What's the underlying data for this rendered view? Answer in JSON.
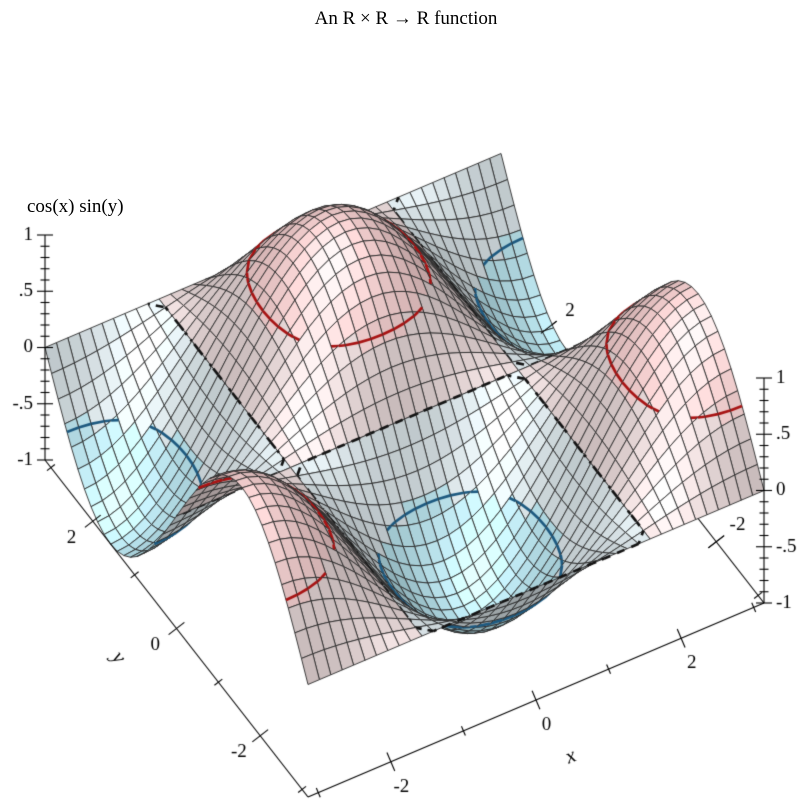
{
  "title": "An R × R → R function",
  "z_axis_title": "cos(x) sin(y)",
  "chart_data": {
    "type": "surface3d",
    "title": "An R × R → R function",
    "function": "z = cos(x) * sin(y)",
    "x_label": "x",
    "y_label": "y",
    "z_label": "cos(x) sin(y)",
    "x_range": [
      -3.141592653589793,
      3.141592653589793
    ],
    "y_range": [
      -3.141592653589793,
      3.141592653589793
    ],
    "z_range": [
      -1,
      1
    ],
    "samples": 41,
    "x_axis": {
      "major_ticks": [
        -2,
        0,
        2
      ],
      "major_labels": [
        "-2",
        "0",
        "2"
      ],
      "minor_ticks": [
        -3,
        -1,
        1,
        3
      ]
    },
    "y_axis": {
      "major_ticks": [
        -2,
        0,
        2
      ],
      "major_labels": [
        "-2",
        "0",
        "2"
      ],
      "minor_ticks": [
        -3,
        -1,
        1,
        3
      ]
    },
    "y_axis_far": {
      "labeled_ticks": [
        2,
        -2
      ],
      "labels": [
        "2",
        "-2"
      ]
    },
    "z_axis": {
      "major_ticks": [
        1,
        0.5,
        0,
        -0.5,
        -1
      ],
      "major_labels": [
        "1",
        ".5",
        "0",
        "-.5",
        "-1"
      ],
      "minor_step": 0.1
    },
    "contour_levels": [
      {
        "z": -0.5,
        "color": "#1e5a80",
        "style": "solid"
      },
      {
        "z": 0,
        "color": "#141414",
        "style": "long-dash"
      },
      {
        "z": 0.5,
        "color": "#a81414",
        "style": "solid"
      }
    ],
    "intervals": [
      {
        "range": [
          -1,
          -0.5
        ],
        "color": "#b7e3ed"
      },
      {
        "range": [
          -0.5,
          0
        ],
        "color": "#d9e4e8"
      },
      {
        "range": [
          0,
          0.5
        ],
        "color": "#e4d4d4"
      },
      {
        "range": [
          0.5,
          1
        ],
        "color": "#f2cccc"
      }
    ],
    "grid_color": "#2a2a2a",
    "axis_color": "#000000",
    "background": "#ffffff",
    "projection": {
      "origin": [
        308,
        797
      ],
      "x_vec": [
        456,
        -194
      ],
      "y_vec": [
        -263,
        -337
      ],
      "z_vec": [
        0,
        -225
      ]
    }
  }
}
